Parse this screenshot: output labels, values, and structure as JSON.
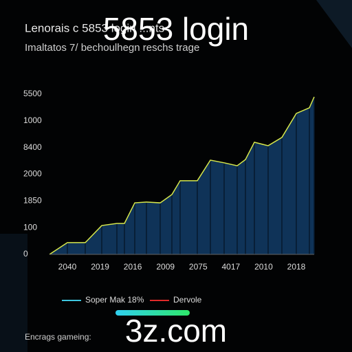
{
  "chart_data": {
    "type": "area",
    "title": "Lenorais c    5853 login    ...nts",
    "overlay_title": "5853 login",
    "subtitle": "Imaltatos 7/ bechoulhegn reschs trage",
    "y_labels": [
      "5500",
      "1000",
      "8400",
      "2000",
      "1850",
      "100",
      "0"
    ],
    "x_labels": [
      "2040",
      "2019",
      "2016",
      "2009",
      "2075",
      "4017",
      "2010",
      "2018"
    ],
    "x": [
      0,
      26,
      52,
      76,
      98,
      109,
      124,
      141,
      161,
      178,
      190,
      215,
      234,
      254,
      273,
      285,
      298,
      318,
      338,
      359,
      378,
      385
    ],
    "values": [
      0,
      0.44,
      0.44,
      1.08,
      1.16,
      1.16,
      1.93,
      1.96,
      1.93,
      2.24,
      2.76,
      2.76,
      3.53,
      3.43,
      3.32,
      3.55,
      4.2,
      4.07,
      4.38,
      5.28,
      5.49,
      5.9
    ],
    "xlim": [
      0,
      385
    ],
    "ylim": [
      0,
      6
    ],
    "color": "#0f3358",
    "line_color": "#d8e84a",
    "legend": [
      {
        "name": "Soper  Mak 18%",
        "color": "#3ec6e0"
      },
      {
        "name": "Dervole",
        "color": "#e02a2a"
      }
    ],
    "footer": "Encrags gameing:",
    "brand": "3z.com"
  }
}
